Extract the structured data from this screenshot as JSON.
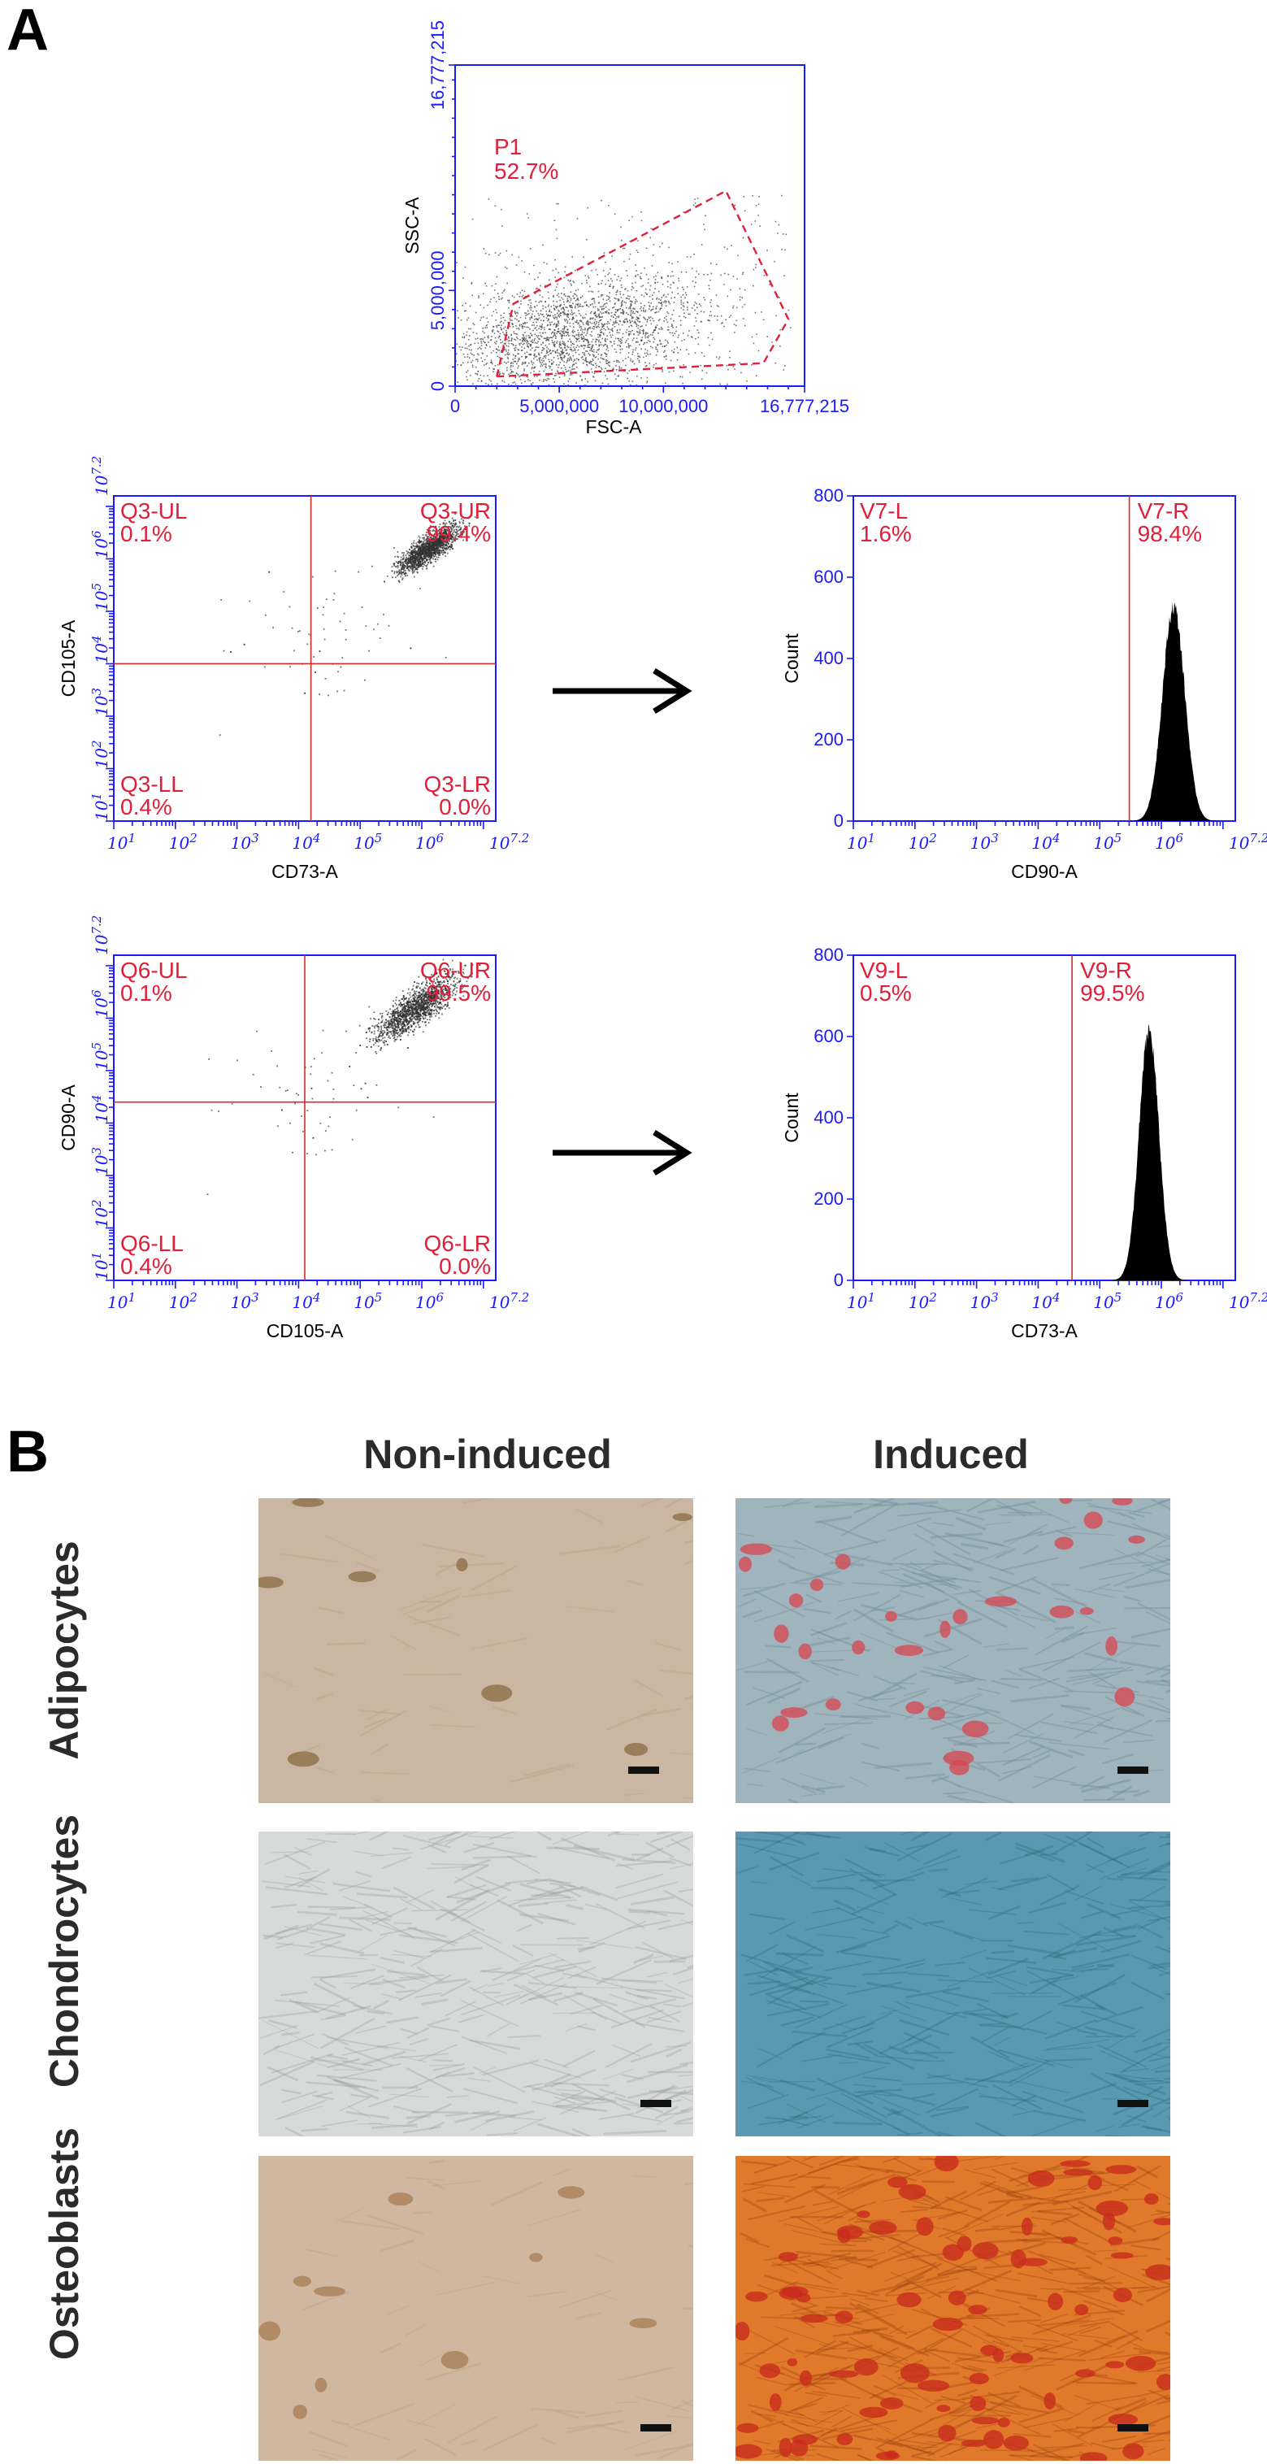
{
  "panel_a": {
    "letter": "A"
  },
  "panel_b": {
    "letter": "B",
    "col_titles": [
      "Non-induced",
      "Induced"
    ],
    "row_titles": [
      "Adipocytes",
      "Chondrocytes",
      "Osteoblasts"
    ],
    "colors": {
      "adipo_non": "#c9b7a3",
      "adipo_ind": "#9fb4bd",
      "adipo_stain": "#d8454f",
      "chondro_non": "#d7dad8",
      "chondro_ind": "#5a9ab0",
      "osteo_non": "#d0b8a0",
      "osteo_ind": "#e07a2a",
      "osteo_stain": "#c8281e"
    }
  },
  "chart_data": [
    {
      "id": "scatter_fsc_ssc",
      "type": "scatter",
      "xlabel": "FSC-A",
      "ylabel": "SSC-A",
      "xlim": [
        0,
        16777215
      ],
      "ylim": [
        0,
        16777215
      ],
      "xticks": [
        "0",
        "5,000,000",
        "10,000,000",
        "16,777,215"
      ],
      "yticks": [
        "0",
        "5,000,000",
        "16,777,215"
      ],
      "gate": {
        "name": "P1",
        "percent": "52.7%"
      },
      "colors": {
        "points": "#404040",
        "gate": "#e0203a"
      }
    },
    {
      "id": "quad_cd73_cd105",
      "type": "scatter",
      "xlabel": "CD73-A",
      "ylabel": "CD105-A",
      "scale": "log",
      "quadrants": [
        {
          "name": "Q3-UL",
          "percent": "0.1%"
        },
        {
          "name": "Q3-UR",
          "percent": "99.4%"
        },
        {
          "name": "Q3-LL",
          "percent": "0.4%"
        },
        {
          "name": "Q3-LR",
          "percent": "0.0%"
        }
      ]
    },
    {
      "id": "hist_cd90",
      "type": "area",
      "xlabel": "CD90-A",
      "ylabel": "Count",
      "scale": "log",
      "ylim": [
        0,
        800
      ],
      "yticks": [
        "0",
        "200",
        "400",
        "600",
        "800"
      ],
      "gates": [
        {
          "name": "V7-L",
          "percent": "1.6%"
        },
        {
          "name": "V7-R",
          "percent": "98.4%"
        }
      ],
      "peak": {
        "x_log10": 6.2,
        "count": 550,
        "width": 0.18
      }
    },
    {
      "id": "quad_cd105_cd90",
      "type": "scatter",
      "xlabel": "CD105-A",
      "ylabel": "CD90-A",
      "scale": "log",
      "quadrants": [
        {
          "name": "Q6-UL",
          "percent": "0.1%"
        },
        {
          "name": "Q6-UR",
          "percent": "99.5%"
        },
        {
          "name": "Q6-LL",
          "percent": "0.4%"
        },
        {
          "name": "Q6-LR",
          "percent": "0.0%"
        }
      ]
    },
    {
      "id": "hist_cd73",
      "type": "area",
      "xlabel": "CD73-A",
      "ylabel": "Count",
      "scale": "log",
      "ylim": [
        0,
        800
      ],
      "yticks": [
        "0",
        "200",
        "400",
        "600",
        "800"
      ],
      "gates": [
        {
          "name": "V9-L",
          "percent": "0.5%"
        },
        {
          "name": "V9-R",
          "percent": "99.5%"
        }
      ],
      "peak": {
        "x_log10": 5.8,
        "count": 640,
        "width": 0.16
      }
    }
  ],
  "log_axis": {
    "base": "10",
    "exponents": [
      "1",
      "2",
      "3",
      "4",
      "5",
      "6",
      "7.2"
    ]
  }
}
